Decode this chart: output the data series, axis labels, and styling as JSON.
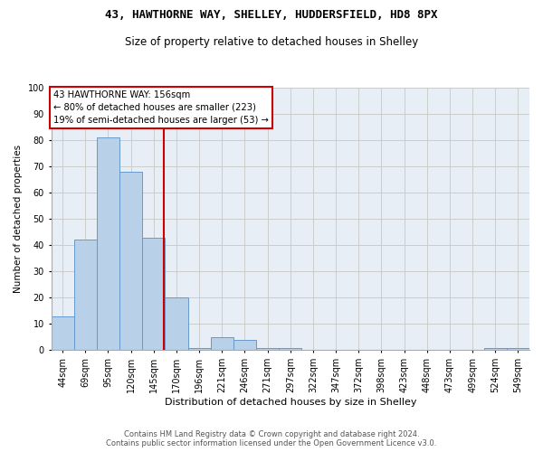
{
  "title1": "43, HAWTHORNE WAY, SHELLEY, HUDDERSFIELD, HD8 8PX",
  "title2": "Size of property relative to detached houses in Shelley",
  "xlabel": "Distribution of detached houses by size in Shelley",
  "ylabel": "Number of detached properties",
  "categories": [
    "44sqm",
    "69sqm",
    "95sqm",
    "120sqm",
    "145sqm",
    "170sqm",
    "196sqm",
    "221sqm",
    "246sqm",
    "271sqm",
    "297sqm",
    "322sqm",
    "347sqm",
    "372sqm",
    "398sqm",
    "423sqm",
    "448sqm",
    "473sqm",
    "499sqm",
    "524sqm",
    "549sqm"
  ],
  "values": [
    13,
    42,
    81,
    68,
    43,
    20,
    1,
    5,
    4,
    1,
    1,
    0,
    0,
    0,
    0,
    0,
    0,
    0,
    0,
    1,
    1
  ],
  "bar_color": "#b8d0e8",
  "bar_edge_color": "#6699cc",
  "vline_color": "#cc0000",
  "vline_pos": 4.44,
  "annotation_text": "43 HAWTHORNE WAY: 156sqm\n← 80% of detached houses are smaller (223)\n19% of semi-detached houses are larger (53) →",
  "annotation_box_color": "#ffffff",
  "annotation_box_edge": "#cc0000",
  "ylim": [
    0,
    100
  ],
  "yticks": [
    0,
    10,
    20,
    30,
    40,
    50,
    60,
    70,
    80,
    90,
    100
  ],
  "grid_color": "#cccccc",
  "bg_color": "#e8eef5",
  "footer1": "Contains HM Land Registry data © Crown copyright and database right 2024.",
  "footer2": "Contains public sector information licensed under the Open Government Licence v3.0.",
  "title1_fontsize": 9,
  "title2_fontsize": 8.5,
  "ylabel_fontsize": 7.5,
  "xlabel_fontsize": 8,
  "tick_fontsize": 7,
  "footer_fontsize": 6,
  "annot_fontsize": 7.2
}
